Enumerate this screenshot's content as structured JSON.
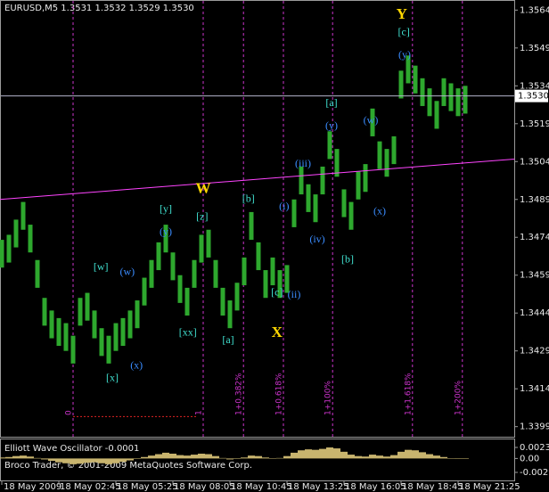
{
  "chart_data": {
    "type": "range-bars",
    "header": "EURUSD,M5  1.3531 1.3532 1.3529 1.3530",
    "footer": "Broco Trader, © 2001-2009 MetaQuotes Software Corp.",
    "categories": [
      "18 May 2009",
      null,
      null,
      null,
      null,
      null,
      null,
      null,
      "18 May 02:45",
      null,
      null,
      null,
      null,
      null,
      null,
      null,
      "18 May 05:25",
      null,
      null,
      null,
      null,
      null,
      null,
      null,
      "18 May 08:05",
      null,
      null,
      null,
      null,
      null,
      null,
      null,
      "18 May 10:45",
      null,
      null,
      null,
      null,
      null,
      null,
      null,
      "18 May 13:25",
      null,
      null,
      null,
      null,
      null,
      null,
      null,
      "18 May 16:05",
      null,
      null,
      null,
      null,
      null,
      null,
      null,
      "18 May 18:45",
      null,
      null,
      null,
      null,
      null,
      null,
      null,
      "18 May 21:25",
      null
    ],
    "high": [
      1.3473,
      1.3475,
      1.3481,
      1.3488,
      1.3479,
      1.3465,
      1.345,
      1.3445,
      1.3442,
      1.344,
      1.3435,
      1.345,
      1.3452,
      1.3445,
      1.3438,
      1.3435,
      1.344,
      1.3442,
      1.3445,
      1.3449,
      1.3458,
      1.3465,
      1.3472,
      1.3479,
      1.3468,
      1.3459,
      1.3454,
      1.3465,
      1.3475,
      1.3477,
      1.3465,
      1.3454,
      1.3449,
      1.3456,
      1.3466,
      1.3484,
      1.3472,
      1.3461,
      1.3466,
      1.3461,
      1.3463,
      1.3489,
      1.3502,
      1.3495,
      1.3491,
      1.3502,
      1.3516,
      1.3509,
      1.3493,
      1.3488,
      1.35,
      1.3503,
      1.3525,
      1.3512,
      1.3509,
      1.3514,
      1.354,
      1.3546,
      1.3542,
      1.3537,
      1.3533,
      1.3528,
      1.3537,
      1.3535,
      1.3533,
      1.3534
    ],
    "low": [
      1.3462,
      1.3464,
      1.347,
      1.3477,
      1.3468,
      1.3454,
      1.3439,
      1.3434,
      1.3431,
      1.3429,
      1.3424,
      1.3439,
      1.3441,
      1.3434,
      1.3427,
      1.3424,
      1.3429,
      1.3431,
      1.3434,
      1.3438,
      1.3447,
      1.3454,
      1.3461,
      1.3468,
      1.3457,
      1.3448,
      1.3443,
      1.3454,
      1.3464,
      1.3466,
      1.3454,
      1.3443,
      1.3438,
      1.3445,
      1.3455,
      1.3473,
      1.3461,
      1.345,
      1.3455,
      1.345,
      1.3452,
      1.3478,
      1.3491,
      1.3484,
      1.348,
      1.3491,
      1.3505,
      1.3498,
      1.3482,
      1.3477,
      1.3489,
      1.3492,
      1.3514,
      1.3501,
      1.3498,
      1.3503,
      1.3529,
      1.3535,
      1.3531,
      1.3526,
      1.3522,
      1.3517,
      1.3526,
      1.3524,
      1.3522,
      1.3523
    ],
    "color": "#2ea82e",
    "ylim": [
      1.3395,
      1.3568
    ],
    "yticks": [
      1.3564,
      1.3549,
      1.3534,
      1.3519,
      1.3504,
      1.3489,
      1.3474,
      1.3459,
      1.3444,
      1.3429,
      1.3414,
      1.3399
    ],
    "current_price": {
      "value": 1.353,
      "label": "1.3530"
    },
    "current_price_color": "#b4b4cc",
    "trendline": {
      "x": [
        -0.25,
        71.9
      ],
      "y": [
        1.3489,
        1.3505
      ],
      "color": "#ff44ff"
    },
    "vline_color": "#cc33cc",
    "vlines": [
      {
        "x": 10,
        "label": "0"
      },
      {
        "x": 28.25,
        "label": "1"
      },
      {
        "x": 33.9,
        "label": "1+0.382%"
      },
      {
        "x": 39.5,
        "label": "1+0.618%"
      },
      {
        "x": 46.4,
        "label": "1+100%"
      },
      {
        "x": 57.6,
        "label": "1+1.618%"
      },
      {
        "x": 64.6,
        "label": "1+200%"
      }
    ],
    "dotted_line": {
      "x": [
        10,
        27.3
      ],
      "y": 1.3403,
      "color": "#dd2222"
    },
    "annotations": [
      {
        "color": "#ffd700",
        "size": "big",
        "items": [
          {
            "text": "W",
            "x": 28.25,
            "y": 1.3493
          },
          {
            "text": "X",
            "x": 38.6,
            "y": 1.3436
          },
          {
            "text": "Y",
            "x": 56.1,
            "y": 1.3562
          }
        ]
      },
      {
        "color": "#40e0d0",
        "size": "normal",
        "items": [
          {
            "text": "[c]",
            "x": 56.4,
            "y": 1.3555
          },
          {
            "text": "[a]",
            "x": 46.25,
            "y": 1.3527
          },
          {
            "text": "[b]",
            "x": 34.6,
            "y": 1.3489
          },
          {
            "text": "[y]",
            "x": 23,
            "y": 1.3485
          },
          {
            "text": "[z]",
            "x": 28.1,
            "y": 1.3482
          },
          {
            "text": "[b]",
            "x": 48.5,
            "y": 1.3465
          },
          {
            "text": "[w]",
            "x": 13.9,
            "y": 1.3462
          },
          {
            "text": "[c]",
            "x": 38.6,
            "y": 1.3452
          },
          {
            "text": "[xx]",
            "x": 26.1,
            "y": 1.3436
          },
          {
            "text": "[a]",
            "x": 31.75,
            "y": 1.3433
          },
          {
            "text": "[x]",
            "x": 15.5,
            "y": 1.3418
          }
        ]
      },
      {
        "color": "#3a8cff",
        "size": "normal",
        "items": [
          {
            "text": "(y)",
            "x": 56.5,
            "y": 1.3546
          },
          {
            "text": "(y)",
            "x": 46.25,
            "y": 1.3518
          },
          {
            "text": "(w)",
            "x": 51.75,
            "y": 1.352
          },
          {
            "text": "(iii)",
            "x": 42.25,
            "y": 1.3503
          },
          {
            "text": "(i)",
            "x": 39.6,
            "y": 1.3486
          },
          {
            "text": "(x)",
            "x": 53,
            "y": 1.3484
          },
          {
            "text": "(y)",
            "x": 23,
            "y": 1.3476
          },
          {
            "text": "(iv)",
            "x": 44.25,
            "y": 1.3473
          },
          {
            "text": "(w)",
            "x": 17.6,
            "y": 1.346
          },
          {
            "text": "(ii)",
            "x": 41,
            "y": 1.3451
          },
          {
            "text": "(x)",
            "x": 18.9,
            "y": 1.3423
          }
        ]
      }
    ],
    "oscillator": {
      "title": "Elliott Wave Oscillator -0.0001",
      "color": "#c8b46e",
      "ylim": [
        -0.0029,
        0.0023
      ],
      "yticks": [
        0.0023,
        {
          "value": 0,
          "label": "0.00"
        },
        -0.0029
      ],
      "values": [
        0.0002,
        0.0003,
        0.0005,
        0.0006,
        0.0004,
        0.0001,
        -0.0002,
        -0.0005,
        -0.0008,
        -0.001,
        -0.0012,
        -0.0011,
        -0.0009,
        -0.0008,
        -0.001,
        -0.0012,
        -0.001,
        -0.0007,
        -0.0004,
        -0.0001,
        0.0003,
        0.0006,
        0.0009,
        0.0012,
        0.001,
        0.0007,
        0.0006,
        0.0008,
        0.001,
        0.0009,
        0.0005,
        0.0001,
        -0.0002,
        -0.0001,
        0.0002,
        0.0006,
        0.0005,
        0.0002,
        0,
        0.0001,
        0.0005,
        0.0012,
        0.0017,
        0.0019,
        0.0018,
        0.002,
        0.0023,
        0.0021,
        0.0014,
        0.0008,
        0.0005,
        0.0004,
        0.0008,
        0.0006,
        0.0004,
        0.0007,
        0.0014,
        0.0018,
        0.0017,
        0.0013,
        0.0009,
        0.0006,
        0.0003,
        0,
        -0.0001,
        -0.0001
      ]
    }
  }
}
